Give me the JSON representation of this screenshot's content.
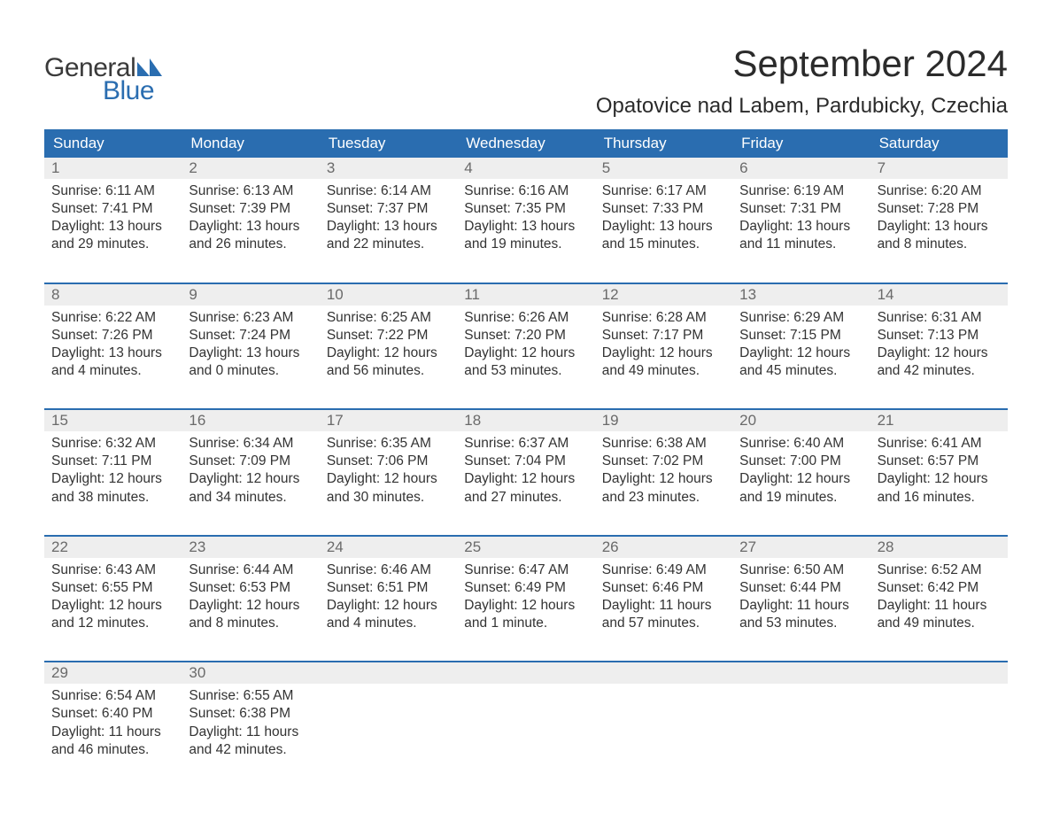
{
  "brand": {
    "line1": "General",
    "line2": "Blue",
    "color1": "#3a3a3a",
    "color2": "#2a6db0"
  },
  "title": "September 2024",
  "location": "Opatovice nad Labem, Pardubicky, Czechia",
  "colors": {
    "header_bg": "#2a6db0",
    "header_text": "#ffffff",
    "daynum_bg": "#eeeeee",
    "daynum_text": "#6a6a6a",
    "body_text": "#333333",
    "divider": "#2a6db0",
    "page_bg": "#ffffff"
  },
  "typography": {
    "title_fontsize": 42,
    "location_fontsize": 24,
    "dow_fontsize": 17,
    "daynum_fontsize": 17,
    "body_fontsize": 15.5
  },
  "dow": [
    "Sunday",
    "Monday",
    "Tuesday",
    "Wednesday",
    "Thursday",
    "Friday",
    "Saturday"
  ],
  "weeks": [
    [
      {
        "n": "1",
        "sunrise": "Sunrise: 6:11 AM",
        "sunset": "Sunset: 7:41 PM",
        "d1": "Daylight: 13 hours",
        "d2": "and 29 minutes."
      },
      {
        "n": "2",
        "sunrise": "Sunrise: 6:13 AM",
        "sunset": "Sunset: 7:39 PM",
        "d1": "Daylight: 13 hours",
        "d2": "and 26 minutes."
      },
      {
        "n": "3",
        "sunrise": "Sunrise: 6:14 AM",
        "sunset": "Sunset: 7:37 PM",
        "d1": "Daylight: 13 hours",
        "d2": "and 22 minutes."
      },
      {
        "n": "4",
        "sunrise": "Sunrise: 6:16 AM",
        "sunset": "Sunset: 7:35 PM",
        "d1": "Daylight: 13 hours",
        "d2": "and 19 minutes."
      },
      {
        "n": "5",
        "sunrise": "Sunrise: 6:17 AM",
        "sunset": "Sunset: 7:33 PM",
        "d1": "Daylight: 13 hours",
        "d2": "and 15 minutes."
      },
      {
        "n": "6",
        "sunrise": "Sunrise: 6:19 AM",
        "sunset": "Sunset: 7:31 PM",
        "d1": "Daylight: 13 hours",
        "d2": "and 11 minutes."
      },
      {
        "n": "7",
        "sunrise": "Sunrise: 6:20 AM",
        "sunset": "Sunset: 7:28 PM",
        "d1": "Daylight: 13 hours",
        "d2": "and 8 minutes."
      }
    ],
    [
      {
        "n": "8",
        "sunrise": "Sunrise: 6:22 AM",
        "sunset": "Sunset: 7:26 PM",
        "d1": "Daylight: 13 hours",
        "d2": "and 4 minutes."
      },
      {
        "n": "9",
        "sunrise": "Sunrise: 6:23 AM",
        "sunset": "Sunset: 7:24 PM",
        "d1": "Daylight: 13 hours",
        "d2": "and 0 minutes."
      },
      {
        "n": "10",
        "sunrise": "Sunrise: 6:25 AM",
        "sunset": "Sunset: 7:22 PM",
        "d1": "Daylight: 12 hours",
        "d2": "and 56 minutes."
      },
      {
        "n": "11",
        "sunrise": "Sunrise: 6:26 AM",
        "sunset": "Sunset: 7:20 PM",
        "d1": "Daylight: 12 hours",
        "d2": "and 53 minutes."
      },
      {
        "n": "12",
        "sunrise": "Sunrise: 6:28 AM",
        "sunset": "Sunset: 7:17 PM",
        "d1": "Daylight: 12 hours",
        "d2": "and 49 minutes."
      },
      {
        "n": "13",
        "sunrise": "Sunrise: 6:29 AM",
        "sunset": "Sunset: 7:15 PM",
        "d1": "Daylight: 12 hours",
        "d2": "and 45 minutes."
      },
      {
        "n": "14",
        "sunrise": "Sunrise: 6:31 AM",
        "sunset": "Sunset: 7:13 PM",
        "d1": "Daylight: 12 hours",
        "d2": "and 42 minutes."
      }
    ],
    [
      {
        "n": "15",
        "sunrise": "Sunrise: 6:32 AM",
        "sunset": "Sunset: 7:11 PM",
        "d1": "Daylight: 12 hours",
        "d2": "and 38 minutes."
      },
      {
        "n": "16",
        "sunrise": "Sunrise: 6:34 AM",
        "sunset": "Sunset: 7:09 PM",
        "d1": "Daylight: 12 hours",
        "d2": "and 34 minutes."
      },
      {
        "n": "17",
        "sunrise": "Sunrise: 6:35 AM",
        "sunset": "Sunset: 7:06 PM",
        "d1": "Daylight: 12 hours",
        "d2": "and 30 minutes."
      },
      {
        "n": "18",
        "sunrise": "Sunrise: 6:37 AM",
        "sunset": "Sunset: 7:04 PM",
        "d1": "Daylight: 12 hours",
        "d2": "and 27 minutes."
      },
      {
        "n": "19",
        "sunrise": "Sunrise: 6:38 AM",
        "sunset": "Sunset: 7:02 PM",
        "d1": "Daylight: 12 hours",
        "d2": "and 23 minutes."
      },
      {
        "n": "20",
        "sunrise": "Sunrise: 6:40 AM",
        "sunset": "Sunset: 7:00 PM",
        "d1": "Daylight: 12 hours",
        "d2": "and 19 minutes."
      },
      {
        "n": "21",
        "sunrise": "Sunrise: 6:41 AM",
        "sunset": "Sunset: 6:57 PM",
        "d1": "Daylight: 12 hours",
        "d2": "and 16 minutes."
      }
    ],
    [
      {
        "n": "22",
        "sunrise": "Sunrise: 6:43 AM",
        "sunset": "Sunset: 6:55 PM",
        "d1": "Daylight: 12 hours",
        "d2": "and 12 minutes."
      },
      {
        "n": "23",
        "sunrise": "Sunrise: 6:44 AM",
        "sunset": "Sunset: 6:53 PM",
        "d1": "Daylight: 12 hours",
        "d2": "and 8 minutes."
      },
      {
        "n": "24",
        "sunrise": "Sunrise: 6:46 AM",
        "sunset": "Sunset: 6:51 PM",
        "d1": "Daylight: 12 hours",
        "d2": "and 4 minutes."
      },
      {
        "n": "25",
        "sunrise": "Sunrise: 6:47 AM",
        "sunset": "Sunset: 6:49 PM",
        "d1": "Daylight: 12 hours",
        "d2": "and 1 minute."
      },
      {
        "n": "26",
        "sunrise": "Sunrise: 6:49 AM",
        "sunset": "Sunset: 6:46 PM",
        "d1": "Daylight: 11 hours",
        "d2": "and 57 minutes."
      },
      {
        "n": "27",
        "sunrise": "Sunrise: 6:50 AM",
        "sunset": "Sunset: 6:44 PM",
        "d1": "Daylight: 11 hours",
        "d2": "and 53 minutes."
      },
      {
        "n": "28",
        "sunrise": "Sunrise: 6:52 AM",
        "sunset": "Sunset: 6:42 PM",
        "d1": "Daylight: 11 hours",
        "d2": "and 49 minutes."
      }
    ],
    [
      {
        "n": "29",
        "sunrise": "Sunrise: 6:54 AM",
        "sunset": "Sunset: 6:40 PM",
        "d1": "Daylight: 11 hours",
        "d2": "and 46 minutes."
      },
      {
        "n": "30",
        "sunrise": "Sunrise: 6:55 AM",
        "sunset": "Sunset: 6:38 PM",
        "d1": "Daylight: 11 hours",
        "d2": "and 42 minutes."
      },
      null,
      null,
      null,
      null,
      null
    ]
  ]
}
